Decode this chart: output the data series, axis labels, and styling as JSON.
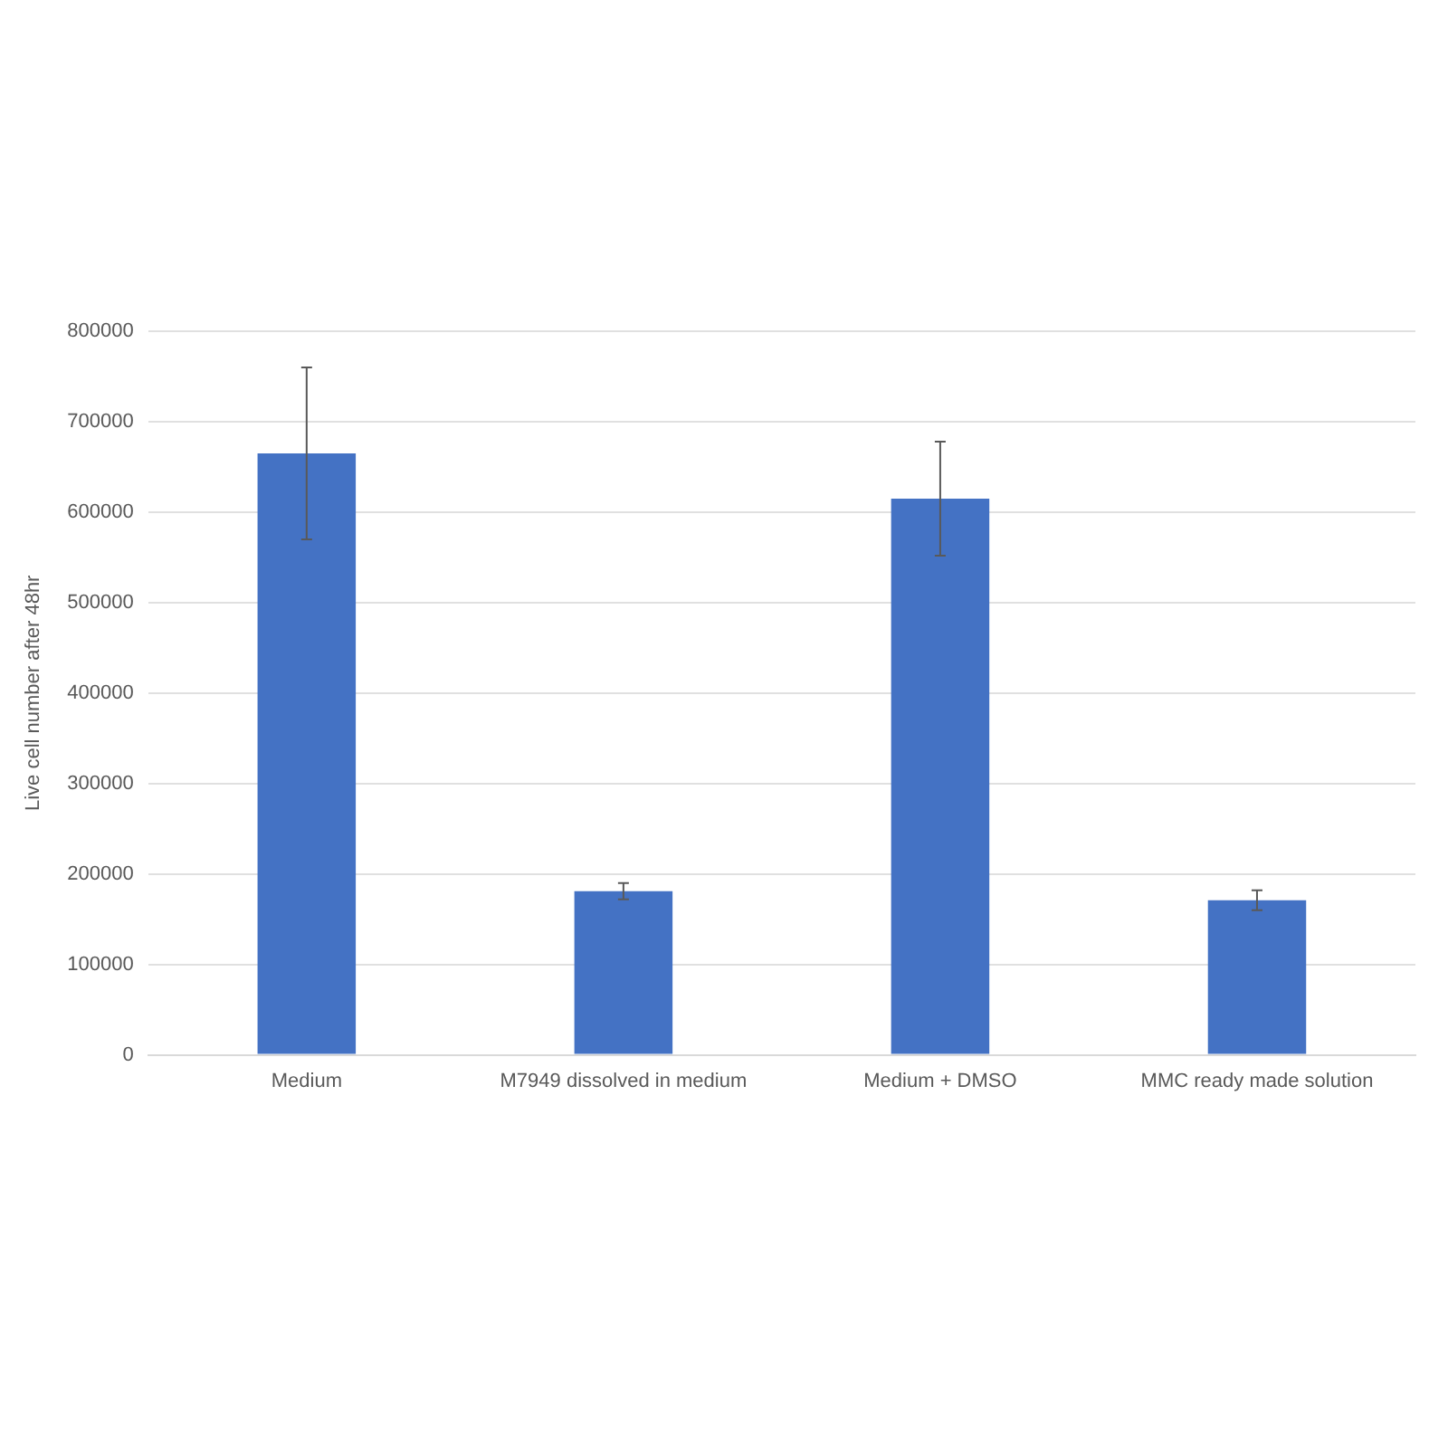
{
  "chart_data": {
    "type": "bar",
    "ylabel": "Live cell number after 48hr",
    "categories": [
      "Medium",
      "M7949 dissolved in medium",
      "Medium + DMSO",
      "MMC ready made solution"
    ],
    "values": [
      665000,
      181000,
      615000,
      171000
    ],
    "errors": [
      95000,
      9000,
      63000,
      11000
    ],
    "color": "#4472c4",
    "ylim": [
      0,
      800000
    ],
    "yticks": [
      0,
      100000,
      200000,
      300000,
      400000,
      500000,
      600000,
      700000,
      800000
    ],
    "grid": "y",
    "legend": false
  }
}
